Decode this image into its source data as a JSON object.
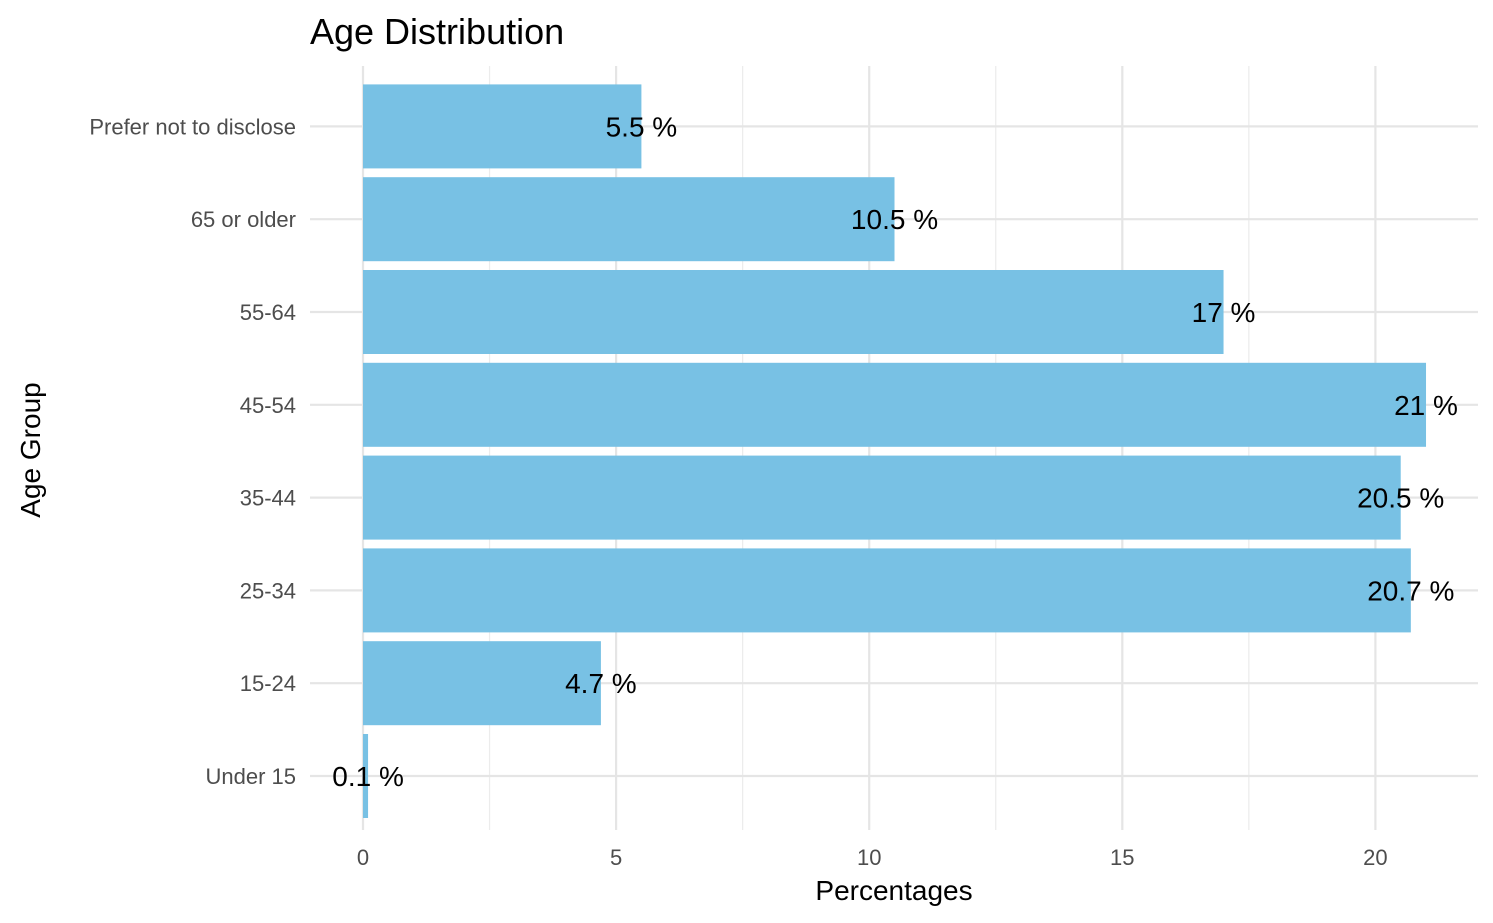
{
  "chart_data": {
    "type": "bar",
    "orientation": "horizontal",
    "title": "Age Distribution",
    "xlabel": "Percentages",
    "ylabel": "Age Group",
    "categories": [
      "Under 15",
      "15-24",
      "25-34",
      "35-44",
      "45-54",
      "55-64",
      "65 or older",
      "Prefer not to disclose"
    ],
    "values": [
      0.1,
      4.7,
      20.7,
      20.5,
      21,
      17,
      10.5,
      5.5
    ],
    "value_labels": [
      "0.1 %",
      "4.7 %",
      "20.7 %",
      "20.5 %",
      "21 %",
      "17 %",
      "10.5 %",
      "5.5 %"
    ],
    "xticks": [
      0,
      5,
      10,
      15,
      20
    ],
    "xtick_labels": [
      "0",
      "5",
      "10",
      "15",
      "20"
    ],
    "xlim": [
      0,
      22
    ],
    "grid": true,
    "bar_color": "#78C1E4"
  }
}
